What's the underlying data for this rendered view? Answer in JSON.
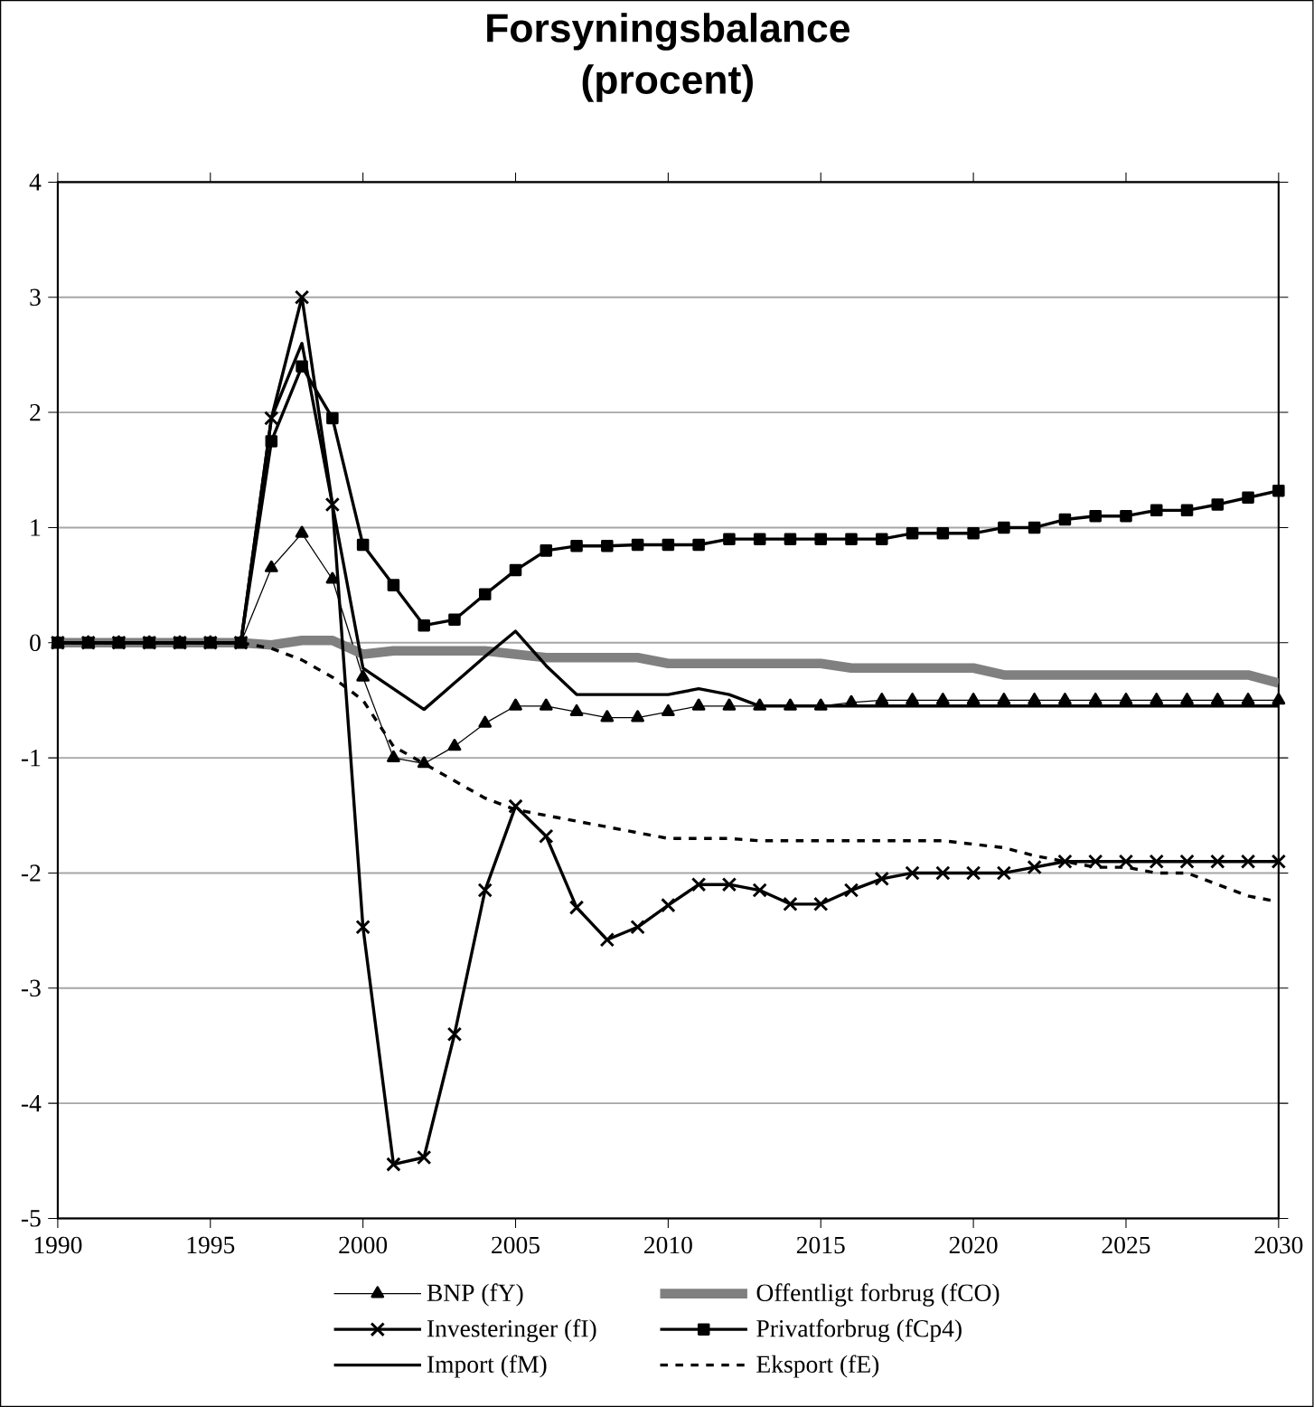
{
  "chart_data": {
    "type": "line",
    "title": "Forsyningsbalance (procent)",
    "x": [
      1990,
      1991,
      1992,
      1993,
      1994,
      1995,
      1996,
      1997,
      1998,
      1999,
      2000,
      2001,
      2002,
      2003,
      2004,
      2005,
      2006,
      2007,
      2008,
      2009,
      2010,
      2011,
      2012,
      2013,
      2014,
      2015,
      2016,
      2017,
      2018,
      2019,
      2020,
      2021,
      2022,
      2023,
      2024,
      2025,
      2026,
      2027,
      2028,
      2029,
      2030
    ],
    "xlim": [
      1990,
      2030
    ],
    "xticks": [
      1990,
      1995,
      2000,
      2005,
      2010,
      2015,
      2020,
      2025,
      2030
    ],
    "ylim": [
      -5,
      4
    ],
    "yticks": [
      -5,
      -4,
      -3,
      -2,
      -1,
      0,
      1,
      2,
      3,
      4
    ],
    "grid": "y",
    "legend": "bottom",
    "series": [
      {
        "name": "BNP (fY)",
        "color": "#000000",
        "marker": "triangle",
        "line_style": "solid",
        "values": [
          0,
          0,
          0,
          0,
          0,
          0,
          0,
          0.65,
          0.95,
          0.55,
          -0.3,
          -1.0,
          -1.05,
          -0.9,
          -0.7,
          -0.55,
          -0.55,
          -0.6,
          -0.65,
          -0.65,
          -0.6,
          -0.55,
          -0.55,
          -0.55,
          -0.55,
          -0.55,
          -0.52,
          -0.5,
          -0.5,
          -0.5,
          -0.5,
          -0.5,
          -0.5,
          -0.5,
          -0.5,
          -0.5,
          -0.5,
          -0.5,
          -0.5,
          -0.5,
          -0.5
        ]
      },
      {
        "name": "Offentligt forbrug (fCO)",
        "color": "#808080",
        "marker": "none",
        "line_style": "solid",
        "values": [
          0,
          0,
          0,
          0,
          0,
          0,
          0,
          -0.02,
          0.02,
          0.02,
          -0.1,
          -0.07,
          -0.07,
          -0.07,
          -0.07,
          -0.1,
          -0.13,
          -0.13,
          -0.13,
          -0.13,
          -0.18,
          -0.18,
          -0.18,
          -0.18,
          -0.18,
          -0.18,
          -0.22,
          -0.22,
          -0.22,
          -0.22,
          -0.22,
          -0.28,
          -0.28,
          -0.28,
          -0.28,
          -0.28,
          -0.28,
          -0.28,
          -0.28,
          -0.28,
          -0.35
        ]
      },
      {
        "name": "Investeringer (fI)",
        "color": "#000000",
        "marker": "cross",
        "line_style": "solid",
        "values": [
          0,
          0,
          0,
          0,
          0,
          0,
          0,
          1.95,
          3.0,
          1.2,
          -2.47,
          -4.53,
          -4.47,
          -3.4,
          -2.15,
          -1.42,
          -1.68,
          -2.3,
          -2.58,
          -2.47,
          -2.28,
          -2.1,
          -2.1,
          -2.15,
          -2.27,
          -2.27,
          -2.15,
          -2.05,
          -2.0,
          -2.0,
          -2.0,
          -2.0,
          -1.95,
          -1.9,
          -1.9,
          -1.9,
          -1.9,
          -1.9,
          -1.9,
          -1.9,
          -1.9
        ]
      },
      {
        "name": "Privatforbrug (fCp4)",
        "color": "#000000",
        "marker": "square",
        "line_style": "solid",
        "values": [
          0,
          0,
          0,
          0,
          0,
          0,
          0,
          1.75,
          2.4,
          1.95,
          0.85,
          0.5,
          0.15,
          0.2,
          0.42,
          0.63,
          0.8,
          0.84,
          0.84,
          0.85,
          0.85,
          0.85,
          0.9,
          0.9,
          0.9,
          0.9,
          0.9,
          0.9,
          0.95,
          0.95,
          0.95,
          1.0,
          1.0,
          1.07,
          1.1,
          1.1,
          1.15,
          1.15,
          1.2,
          1.26,
          1.32
        ]
      },
      {
        "name": "Import (fM)",
        "color": "#000000",
        "marker": "none",
        "line_style": "solid",
        "values": [
          0,
          0,
          0,
          0,
          0,
          0,
          0,
          1.95,
          2.6,
          1.2,
          -0.22,
          -0.4,
          -0.58,
          -0.35,
          -0.12,
          0.1,
          -0.2,
          -0.45,
          -0.45,
          -0.45,
          -0.45,
          -0.4,
          -0.45,
          -0.55,
          -0.55,
          -0.55,
          -0.55,
          -0.55,
          -0.55,
          -0.55,
          -0.55,
          -0.55,
          -0.55,
          -0.55,
          -0.55,
          -0.55,
          -0.55,
          -0.55,
          -0.55,
          -0.55,
          -0.55
        ]
      },
      {
        "name": "Eksport (fE)",
        "color": "#000000",
        "marker": "none",
        "line_style": "dashed",
        "values": [
          0,
          0,
          0,
          0,
          0,
          0,
          0,
          -0.05,
          -0.15,
          -0.3,
          -0.5,
          -0.9,
          -1.05,
          -1.2,
          -1.35,
          -1.45,
          -1.5,
          -1.55,
          -1.6,
          -1.65,
          -1.7,
          -1.7,
          -1.7,
          -1.72,
          -1.72,
          -1.72,
          -1.72,
          -1.72,
          -1.72,
          -1.72,
          -1.75,
          -1.78,
          -1.85,
          -1.9,
          -1.95,
          -1.95,
          -2.0,
          -2.0,
          -2.1,
          -2.2,
          -2.25
        ]
      }
    ]
  }
}
